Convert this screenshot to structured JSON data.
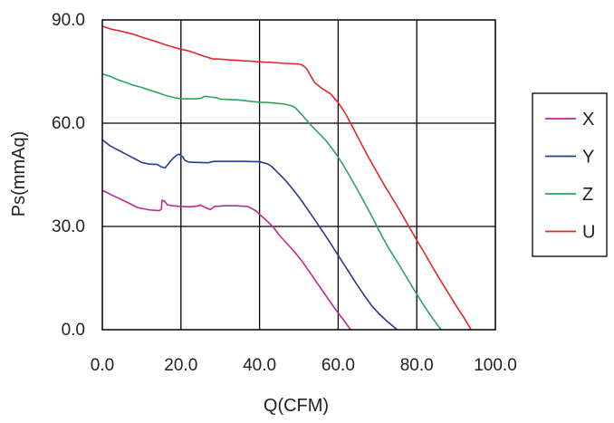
{
  "chart_data": {
    "type": "line",
    "title": "",
    "xlabel": "Q(CFM)",
    "ylabel": "Ps(mmAq)",
    "xlim": [
      0,
      100
    ],
    "ylim": [
      0,
      90
    ],
    "x_ticks": [
      "0.0",
      "20.0",
      "40.0",
      "60.0",
      "80.0",
      "100.0"
    ],
    "y_ticks": [
      "0.0",
      "30.0",
      "60.0",
      "90.0"
    ],
    "grid": true,
    "legend_position": "right",
    "series": [
      {
        "name": "X",
        "color": "#c0269a",
        "points": [
          [
            0,
            40.5
          ],
          [
            3,
            38.8
          ],
          [
            6,
            37.2
          ],
          [
            9,
            35.5
          ],
          [
            12,
            34.8
          ],
          [
            14.5,
            34.6
          ],
          [
            15.0,
            35.0
          ],
          [
            15.2,
            37.6
          ],
          [
            15.8,
            37.4
          ],
          [
            16.5,
            36.3
          ],
          [
            18,
            36.0
          ],
          [
            20,
            35.8
          ],
          [
            22.5,
            35.7
          ],
          [
            24,
            35.9
          ],
          [
            25,
            36.2
          ],
          [
            26,
            35.6
          ],
          [
            27.5,
            34.9
          ],
          [
            28.5,
            35.8
          ],
          [
            31,
            36.0
          ],
          [
            34,
            36.0
          ],
          [
            37,
            35.8
          ],
          [
            39,
            34.6
          ],
          [
            40.5,
            33.0
          ],
          [
            42,
            31.5
          ],
          [
            43.5,
            29.8
          ],
          [
            45,
            27.5
          ],
          [
            47,
            25.0
          ],
          [
            49,
            22.5
          ],
          [
            51,
            19.6
          ],
          [
            53,
            16.3
          ],
          [
            55,
            13.0
          ],
          [
            57,
            9.7
          ],
          [
            59,
            6.4
          ],
          [
            61,
            3.4
          ],
          [
            62.8,
            0.6
          ],
          [
            63.2,
            0
          ]
        ]
      },
      {
        "name": "Y",
        "color": "#263a92",
        "points": [
          [
            0,
            55.2
          ],
          [
            2,
            53.4
          ],
          [
            4,
            52.2
          ],
          [
            6,
            51.0
          ],
          [
            8,
            49.8
          ],
          [
            10,
            48.6
          ],
          [
            12,
            48.1
          ],
          [
            14,
            48.0
          ],
          [
            15,
            47.3
          ],
          [
            16,
            47.0
          ],
          [
            17,
            48.5
          ],
          [
            18,
            49.8
          ],
          [
            19,
            50.8
          ],
          [
            19.5,
            51.0
          ],
          [
            20.5,
            50.2
          ],
          [
            21,
            49.2
          ],
          [
            22,
            48.7
          ],
          [
            24,
            48.6
          ],
          [
            27,
            48.5
          ],
          [
            27.5,
            48.7
          ],
          [
            28.5,
            48.9
          ],
          [
            32,
            48.9
          ],
          [
            36,
            48.9
          ],
          [
            40,
            48.8
          ],
          [
            42,
            48.2
          ],
          [
            43,
            47.5
          ],
          [
            44.5,
            45.8
          ],
          [
            46.5,
            43.5
          ],
          [
            48.5,
            40.8
          ],
          [
            50.5,
            37.8
          ],
          [
            52.5,
            34.5
          ],
          [
            54.5,
            31.2
          ],
          [
            56.5,
            27.8
          ],
          [
            58.5,
            24.3
          ],
          [
            60.5,
            20.7
          ],
          [
            62.5,
            17.2
          ],
          [
            64.5,
            13.6
          ],
          [
            66.5,
            10.2
          ],
          [
            68.5,
            7.0
          ],
          [
            70.5,
            4.5
          ],
          [
            72.5,
            2.4
          ],
          [
            74.5,
            0.5
          ],
          [
            75,
            0
          ]
        ]
      },
      {
        "name": "Z",
        "color": "#2ea35a",
        "points": [
          [
            0,
            74.3
          ],
          [
            2,
            73.6
          ],
          [
            4,
            72.6
          ],
          [
            6,
            71.8
          ],
          [
            8,
            71.0
          ],
          [
            10,
            70.4
          ],
          [
            12,
            69.6
          ],
          [
            14,
            68.9
          ],
          [
            16,
            68.1
          ],
          [
            18,
            67.5
          ],
          [
            20,
            67.1
          ],
          [
            22,
            67.1
          ],
          [
            24,
            67.1
          ],
          [
            25,
            67.2
          ],
          [
            26,
            67.8
          ],
          [
            27.5,
            67.6
          ],
          [
            29,
            67.4
          ],
          [
            30,
            67.0
          ],
          [
            32,
            66.9
          ],
          [
            34,
            66.8
          ],
          [
            36,
            66.6
          ],
          [
            38,
            66.3
          ],
          [
            40,
            66.1
          ],
          [
            42,
            66.0
          ],
          [
            44,
            65.8
          ],
          [
            46,
            65.6
          ],
          [
            48,
            65.1
          ],
          [
            49,
            64.6
          ],
          [
            50,
            63.4
          ],
          [
            51.5,
            61.5
          ],
          [
            53,
            59.5
          ],
          [
            55,
            57.2
          ],
          [
            57,
            54.8
          ],
          [
            59,
            51.8
          ],
          [
            61,
            48.4
          ],
          [
            63,
            44.5
          ],
          [
            65,
            40.5
          ],
          [
            67,
            36.3
          ],
          [
            69,
            32.0
          ],
          [
            71,
            27.5
          ],
          [
            73,
            23.4
          ],
          [
            75,
            19.8
          ],
          [
            77,
            16.0
          ],
          [
            79,
            12.2
          ],
          [
            81,
            8.5
          ],
          [
            83,
            5.0
          ],
          [
            85,
            1.8
          ],
          [
            86.2,
            0
          ]
        ]
      },
      {
        "name": "U",
        "color": "#e3262b",
        "points": [
          [
            0,
            88.2
          ],
          [
            2,
            87.4
          ],
          [
            4,
            86.9
          ],
          [
            6,
            86.4
          ],
          [
            8,
            85.8
          ],
          [
            10,
            85.0
          ],
          [
            12,
            84.3
          ],
          [
            14,
            83.6
          ],
          [
            16,
            82.8
          ],
          [
            18,
            82.1
          ],
          [
            20,
            81.5
          ],
          [
            22,
            81.0
          ],
          [
            24,
            80.2
          ],
          [
            26,
            79.4
          ],
          [
            28,
            78.7
          ],
          [
            30,
            78.6
          ],
          [
            32,
            78.4
          ],
          [
            34,
            78.3
          ],
          [
            36,
            78.1
          ],
          [
            38,
            78.0
          ],
          [
            40,
            77.8
          ],
          [
            42,
            77.7
          ],
          [
            44,
            77.6
          ],
          [
            46,
            77.4
          ],
          [
            48,
            77.3
          ],
          [
            50,
            77.2
          ],
          [
            51,
            76.8
          ],
          [
            52,
            75.8
          ],
          [
            53,
            73.8
          ],
          [
            54,
            71.8
          ],
          [
            56,
            70.0
          ],
          [
            58,
            68.6
          ],
          [
            60,
            66.0
          ],
          [
            62,
            62.5
          ],
          [
            64,
            58.2
          ],
          [
            66,
            53.8
          ],
          [
            68,
            49.5
          ],
          [
            70,
            45.5
          ],
          [
            72,
            41.5
          ],
          [
            74,
            37.8
          ],
          [
            76,
            34.0
          ],
          [
            78,
            30.0
          ],
          [
            80,
            26.0
          ],
          [
            82,
            22.2
          ],
          [
            84,
            18.2
          ],
          [
            86,
            14.4
          ],
          [
            88,
            10.7
          ],
          [
            90,
            7.0
          ],
          [
            92,
            3.5
          ],
          [
            93.6,
            0.5
          ],
          [
            93.8,
            0
          ]
        ]
      }
    ]
  }
}
